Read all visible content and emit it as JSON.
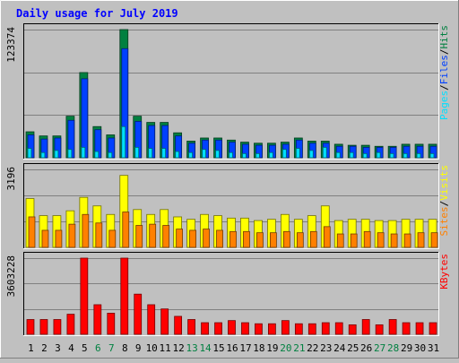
{
  "chart_data": {
    "type": "bar",
    "title": "Daily usage for July 2019",
    "categories": [
      "1",
      "2",
      "3",
      "4",
      "5",
      "6",
      "7",
      "8",
      "9",
      "10",
      "11",
      "12",
      "13",
      "14",
      "15",
      "16",
      "17",
      "18",
      "19",
      "20",
      "21",
      "22",
      "23",
      "24",
      "25",
      "26",
      "27",
      "28",
      "29",
      "30",
      "31"
    ],
    "weekend_days": [
      "6",
      "7",
      "13",
      "14",
      "20",
      "21",
      "27",
      "28"
    ],
    "panels": [
      {
        "id": "hits-files-pages",
        "max_label": "123374",
        "ymax": 123374,
        "series": [
          {
            "name": "Hits",
            "color": "#008040",
            "values": [
              25000,
              21000,
              21000,
              40000,
              82000,
              30000,
              22000,
              123374,
              40000,
              34000,
              34000,
              24000,
              16000,
              19000,
              19000,
              17000,
              15000,
              14000,
              14000,
              15000,
              19000,
              16000,
              16000,
              13000,
              12000,
              12000,
              11000,
              11000,
              13000,
              13000,
              13000
            ]
          },
          {
            "name": "Files",
            "color": "#0040ff",
            "values": [
              22000,
              18000,
              19000,
              36000,
              76000,
              27000,
              19000,
              105000,
              35000,
              31000,
              31000,
              21000,
              14000,
              17000,
              17000,
              15000,
              13000,
              12000,
              12000,
              13000,
              17000,
              14000,
              14000,
              11000,
              11000,
              10000,
              10000,
              10000,
              11000,
              11000,
              11000
            ]
          },
          {
            "name": "Pages",
            "color": "#00e0ff",
            "values": [
              9000,
              5000,
              7000,
              8000,
              10000,
              6000,
              5000,
              30000,
              10000,
              9000,
              9000,
              6000,
              5000,
              8000,
              7000,
              5000,
              4000,
              4000,
              5000,
              8000,
              9000,
              7000,
              10000,
              5000,
              5000,
              4000,
              5000,
              4000,
              4000,
              4000,
              4000
            ]
          }
        ]
      },
      {
        "id": "visits-sites",
        "max_label": "3196",
        "ymax": 3196,
        "series": [
          {
            "name": "Visits",
            "color": "#ffff00",
            "values": [
              2000,
              1300,
              1300,
              1500,
              2050,
              1700,
              1350,
              2950,
              1550,
              1350,
              1550,
              1250,
              1150,
              1350,
              1300,
              1200,
              1200,
              1100,
              1150,
              1350,
              1150,
              1300,
              1700,
              1100,
              1150,
              1150,
              1100,
              1100,
              1150,
              1150,
              1150
            ]
          },
          {
            "name": "Sites",
            "color": "#ff8000",
            "values": [
              1250,
              700,
              700,
              950,
              1350,
              1000,
              700,
              1450,
              900,
              950,
              900,
              750,
              700,
              750,
              700,
              650,
              650,
              600,
              600,
              650,
              600,
              650,
              850,
              550,
              550,
              650,
              600,
              550,
              550,
              600,
              600
            ]
          }
        ]
      },
      {
        "id": "kbytes",
        "max_label": "3603228",
        "ymax": 3603228,
        "series": [
          {
            "name": "KBytes",
            "color": "#ff0000",
            "values": [
              700000,
              700000,
              700000,
              950000,
              3603228,
              1400000,
              1000000,
              3603228,
              1900000,
              1400000,
              1200000,
              850000,
              700000,
              550000,
              550000,
              650000,
              550000,
              500000,
              500000,
              650000,
              500000,
              500000,
              550000,
              550000,
              450000,
              700000,
              450000,
              700000,
              550000,
              550000,
              550000
            ]
          }
        ]
      }
    ],
    "right_legends": [
      {
        "panel": "hits-files-pages",
        "items": [
          {
            "text": "Pages",
            "color": "#00e0ff"
          },
          {
            "text": "/",
            "color": "#000000"
          },
          {
            "text": "Files",
            "color": "#0040ff"
          },
          {
            "text": "/",
            "color": "#000000"
          },
          {
            "text": "Hits",
            "color": "#008040"
          }
        ]
      },
      {
        "panel": "visits-sites",
        "items": [
          {
            "text": "Sites",
            "color": "#ff8000"
          },
          {
            "text": "/",
            "color": "#000000"
          },
          {
            "text": "Visits",
            "color": "#ffff00"
          }
        ]
      },
      {
        "panel": "kbytes",
        "items": [
          {
            "text": "KBytes",
            "color": "#ff0000"
          }
        ]
      }
    ]
  }
}
